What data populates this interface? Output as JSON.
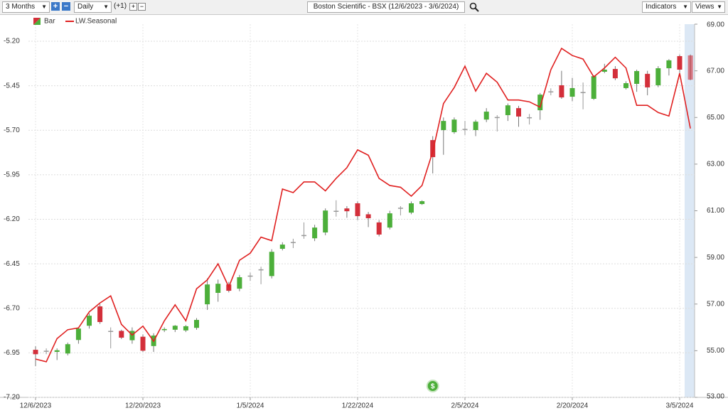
{
  "toolbar": {
    "range": "3 Months",
    "interval": "Daily",
    "offset": "(+1)",
    "symbol": "Boston Scientific - BSX (12/6/2023 - 3/6/2024)",
    "indicators": "Indicators",
    "views": "Views"
  },
  "chart_data": {
    "type": "candlestick",
    "categories": [
      "12/6/2023",
      null,
      null,
      null,
      null,
      null,
      null,
      null,
      null,
      null,
      "12/20/2023",
      null,
      null,
      null,
      null,
      null,
      null,
      null,
      null,
      null,
      "1/5/2024",
      null,
      null,
      null,
      null,
      null,
      null,
      null,
      null,
      null,
      "1/22/2024",
      null,
      null,
      null,
      null,
      null,
      null,
      null,
      null,
      null,
      "2/5/2024",
      null,
      null,
      null,
      null,
      null,
      null,
      null,
      null,
      null,
      "2/20/2024",
      null,
      null,
      null,
      null,
      null,
      null,
      null,
      null,
      null,
      "3/5/2024",
      null
    ],
    "ylim": [
      -7.2,
      -5.104
    ],
    "yticks": [
      {
        "value": -5.2,
        "label": "-5.20"
      },
      {
        "value": -5.45,
        "label": "-5.45"
      },
      {
        "value": -5.7,
        "label": "-5.70"
      },
      {
        "value": -5.95,
        "label": "-5.95"
      },
      {
        "value": -6.2,
        "label": "-6.20"
      },
      {
        "value": -6.45,
        "label": "-6.45"
      },
      {
        "value": -6.7,
        "label": "-6.70"
      },
      {
        "value": -6.95,
        "label": "-6.95"
      },
      {
        "value": -7.2,
        "label": "-7.20"
      }
    ],
    "y2lim": [
      53,
      69
    ],
    "y2ticks": [
      {
        "value": 69,
        "label": "69.00"
      },
      {
        "value": 67,
        "label": "67.00"
      },
      {
        "value": 65,
        "label": "65.00"
      },
      {
        "value": 63,
        "label": "63.00"
      },
      {
        "value": 61,
        "label": "61.00"
      },
      {
        "value": 59,
        "label": "59.00"
      },
      {
        "value": 57,
        "label": "57.00"
      },
      {
        "value": 55,
        "label": "55.00"
      },
      {
        "value": 53,
        "label": "53.00"
      }
    ],
    "grid": true,
    "legend": "top-left",
    "annotations": [
      "$"
    ],
    "series": [
      {
        "name": "Bar",
        "axis": "y2",
        "up_color": "#4caf3a",
        "down_color": "#d32f3a",
        "flat_color": "#999999",
        "open": [
          55.04,
          55.0,
          54.95,
          54.88,
          55.46,
          56.07,
          56.9,
          55.85,
          55.85,
          55.45,
          55.6,
          55.2,
          55.88,
          55.9,
          55.87,
          55.98,
          56.99,
          57.48,
          57.84,
          57.66,
          58.22,
          58.49,
          58.2,
          59.37,
          59.66,
          59.96,
          59.82,
          60.07,
          61.0,
          61.1,
          61.32,
          60.85,
          60.5,
          60.28,
          61.13,
          60.92,
          61.29,
          64.03,
          64.46,
          64.37,
          64.51,
          64.46,
          64.91,
          65.02,
          65.1,
          65.4,
          65.01,
          65.31,
          66.12,
          66.38,
          65.89,
          66.09,
          65.8,
          66.96,
          67.08,
          66.26,
          66.44,
          66.87,
          66.38,
          67.11,
          67.63,
          67.66
        ],
        "high": [
          55.19,
          55.1,
          55.1,
          55.35,
          56.0,
          56.6,
          57.0,
          56.0,
          55.9,
          56.0,
          55.7,
          55.75,
          56.0,
          56.1,
          56.1,
          56.4,
          58.1,
          58.05,
          57.95,
          58.25,
          58.35,
          58.6,
          59.35,
          59.65,
          59.8,
          60.5,
          60.4,
          61.1,
          61.45,
          61.2,
          61.4,
          60.95,
          60.6,
          61.0,
          61.2,
          61.4,
          61.45,
          64.2,
          65.0,
          65.0,
          64.85,
          64.9,
          65.4,
          65.1,
          65.6,
          65.5,
          65.15,
          66.05,
          66.25,
          67.0,
          66.7,
          66.5,
          66.8,
          67.3,
          67.2,
          66.55,
          67.05,
          67.0,
          67.2,
          67.5,
          67.7,
          67.7
        ],
        "low": [
          54.34,
          54.85,
          54.6,
          54.8,
          55.3,
          55.95,
          56.15,
          55.1,
          55.5,
          55.3,
          54.95,
          54.95,
          55.8,
          55.8,
          55.8,
          55.9,
          56.75,
          57.1,
          57.5,
          57.55,
          58.0,
          57.85,
          58.1,
          59.3,
          59.4,
          59.8,
          59.7,
          59.95,
          60.75,
          60.7,
          60.6,
          60.3,
          59.9,
          60.2,
          60.8,
          60.85,
          61.25,
          62.6,
          63.4,
          64.3,
          64.25,
          64.2,
          64.8,
          64.4,
          64.85,
          64.6,
          64.7,
          64.9,
          65.95,
          65.8,
          65.7,
          65.35,
          65.75,
          66.9,
          66.6,
          66.2,
          66.1,
          65.95,
          66.3,
          66.8,
          66.8,
          66.6
        ],
        "close": [
          54.85,
          55.0,
          55.02,
          55.28,
          55.95,
          56.5,
          56.23,
          55.85,
          55.56,
          55.85,
          55.0,
          55.65,
          55.93,
          56.07,
          56.05,
          56.32,
          57.84,
          57.87,
          57.57,
          58.15,
          58.22,
          58.49,
          59.24,
          59.55,
          59.66,
          59.96,
          60.28,
          61.01,
          61.0,
          60.98,
          60.77,
          60.68,
          59.98,
          60.89,
          61.13,
          61.32,
          61.41,
          63.3,
          64.85,
          64.91,
          64.51,
          64.82,
          65.25,
          65.02,
          65.52,
          65.04,
          65.01,
          65.98,
          66.12,
          65.86,
          66.26,
          66.09,
          66.77,
          67.05,
          66.68,
          66.47,
          66.99,
          66.29,
          67.11,
          67.45,
          67.05,
          66.62
        ]
      },
      {
        "name": "LW.Seasonal",
        "axis": "y",
        "color": "#e02020",
        "values": [
          -6.985,
          -7.0,
          -6.87,
          -6.82,
          -6.81,
          -6.72,
          -6.67,
          -6.63,
          -6.79,
          -6.85,
          -6.8,
          -6.885,
          -6.77,
          -6.68,
          -6.77,
          -6.59,
          -6.54,
          -6.45,
          -6.58,
          -6.43,
          -6.39,
          -6.3,
          -6.32,
          -6.03,
          -6.05,
          -5.99,
          -5.99,
          -6.04,
          -5.97,
          -5.91,
          -5.81,
          -5.84,
          -5.97,
          -6.01,
          -6.02,
          -6.07,
          -6.01,
          -5.82,
          -5.55,
          -5.46,
          -5.34,
          -5.48,
          -5.38,
          -5.43,
          -5.53,
          -5.53,
          -5.54,
          -5.57,
          -5.36,
          -5.24,
          -5.28,
          -5.3,
          -5.4,
          -5.35,
          -5.29,
          -5.35,
          -5.56,
          -5.56,
          -5.6,
          -5.62,
          -5.38,
          -5.69
        ]
      }
    ]
  }
}
